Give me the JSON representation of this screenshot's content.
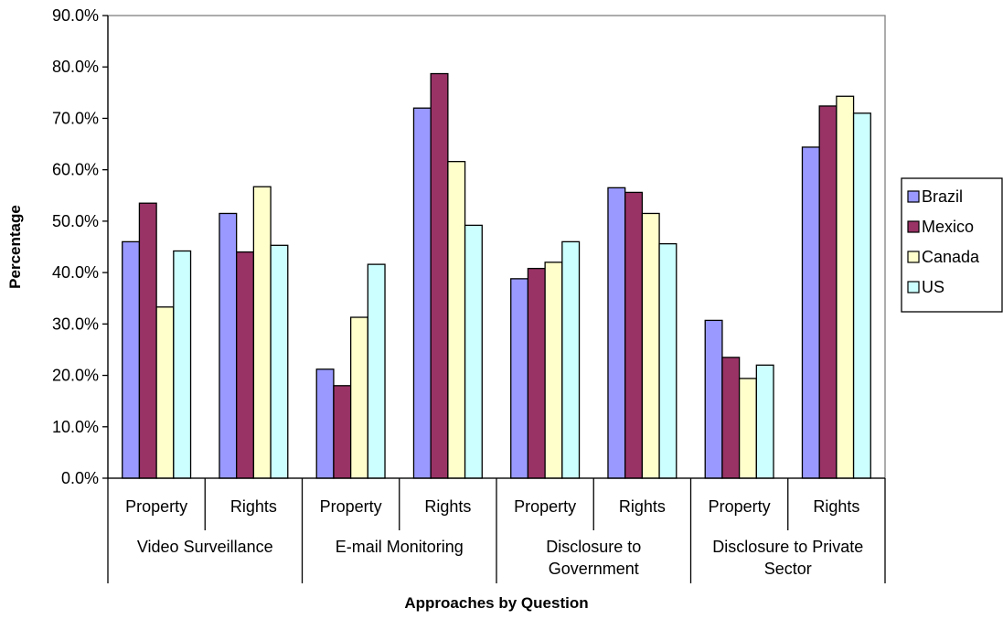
{
  "chart_data": {
    "type": "bar",
    "title": "",
    "xlabel": "Approaches by Question",
    "ylabel": "Percentage",
    "ylim": [
      0,
      90
    ],
    "ytick_values": [
      0,
      10,
      20,
      30,
      40,
      50,
      60,
      70,
      80,
      90
    ],
    "ytick_labels": [
      "0.0%",
      "10.0%",
      "20.0%",
      "30.0%",
      "40.0%",
      "50.0%",
      "60.0%",
      "70.0%",
      "80.0%",
      "90.0%"
    ],
    "categories": [
      "Property",
      "Rights",
      "Property",
      "Rights",
      "Property",
      "Rights",
      "Property",
      "Rights"
    ],
    "groups": [
      {
        "label_lines": [
          "Video Surveillance"
        ]
      },
      {
        "label_lines": [
          "E-mail Monitoring"
        ]
      },
      {
        "label_lines": [
          "Disclosure to",
          "Government"
        ]
      },
      {
        "label_lines": [
          "Disclosure to Private",
          "Sector"
        ]
      }
    ],
    "series": [
      {
        "name": "Brazil",
        "color": "#9999ff",
        "values": [
          46.0,
          51.5,
          21.2,
          72.0,
          38.8,
          56.5,
          30.7,
          64.4
        ]
      },
      {
        "name": "Mexico",
        "color": "#993366",
        "values": [
          53.5,
          44.0,
          18.0,
          78.7,
          40.8,
          55.6,
          23.5,
          72.4
        ]
      },
      {
        "name": "Canada",
        "color": "#ffffcc",
        "values": [
          33.3,
          56.7,
          31.3,
          61.6,
          42.0,
          51.5,
          19.4,
          74.3
        ]
      },
      {
        "name": "US",
        "color": "#ccffff",
        "values": [
          44.2,
          45.3,
          41.6,
          49.2,
          46.0,
          45.6,
          22.0,
          71.0
        ]
      }
    ],
    "grid": false,
    "legend_position": "right"
  }
}
